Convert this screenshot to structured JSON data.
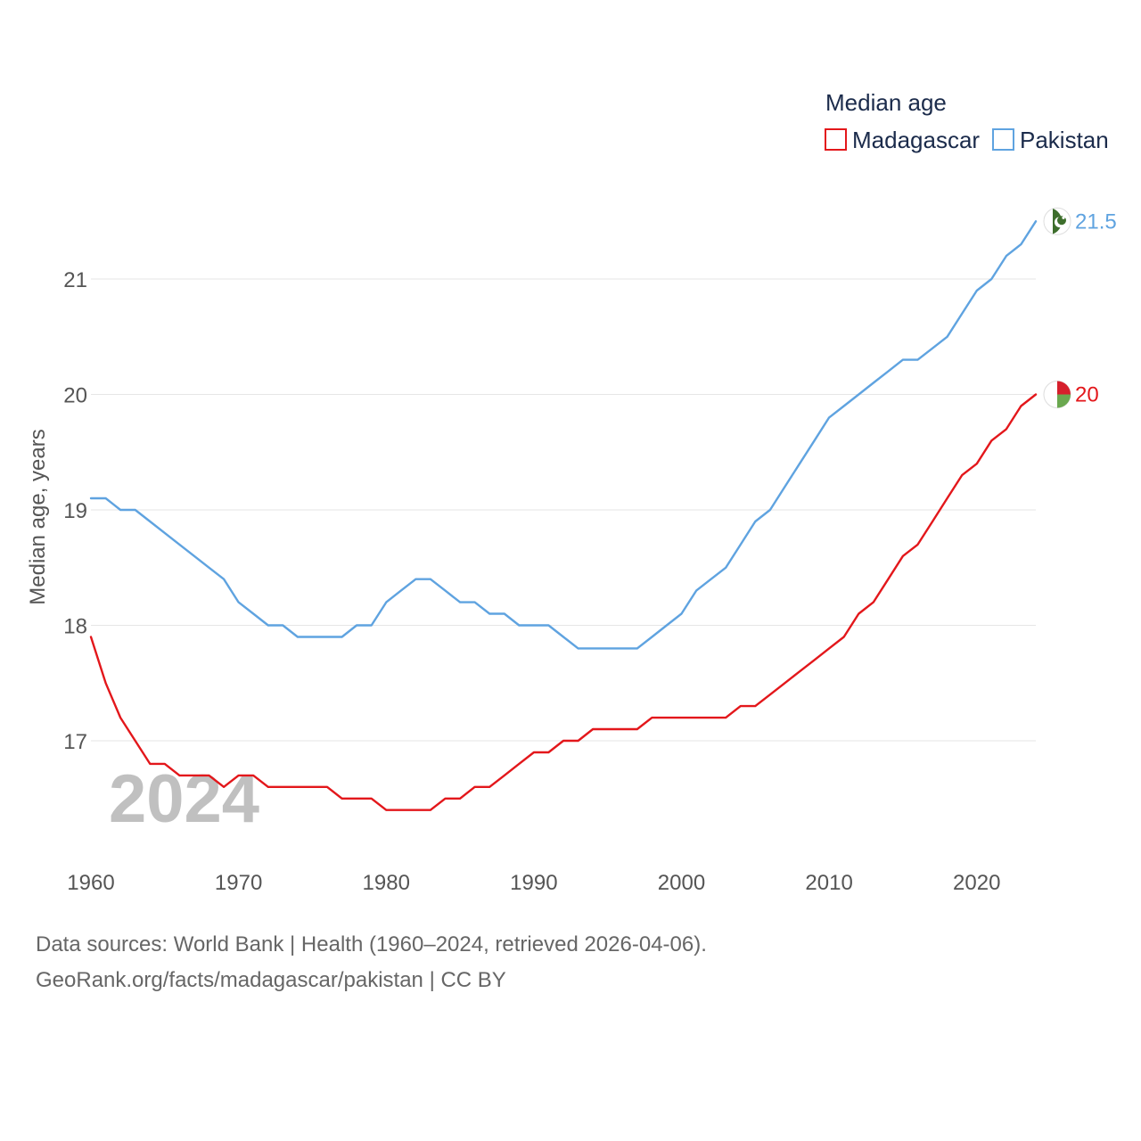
{
  "chart_data": {
    "type": "line",
    "legend_title": "Median age",
    "ylabel": "Median age, years",
    "xlabel": "",
    "xlim": [
      1960,
      2024
    ],
    "ylim": [
      16,
      21.7
    ],
    "x_ticks": [
      1960,
      1970,
      1980,
      1990,
      2000,
      2010,
      2020
    ],
    "y_ticks": [
      17,
      18,
      19,
      20,
      21
    ],
    "grid": "horizontal",
    "legend_position": "top-right",
    "year_label": "2024",
    "x": [
      1960,
      1961,
      1962,
      1963,
      1964,
      1965,
      1966,
      1967,
      1968,
      1969,
      1970,
      1971,
      1972,
      1973,
      1974,
      1975,
      1976,
      1977,
      1978,
      1979,
      1980,
      1981,
      1982,
      1983,
      1984,
      1985,
      1986,
      1987,
      1988,
      1989,
      1990,
      1991,
      1992,
      1993,
      1994,
      1995,
      1996,
      1997,
      1998,
      1999,
      2000,
      2001,
      2002,
      2003,
      2004,
      2005,
      2006,
      2007,
      2008,
      2009,
      2010,
      2011,
      2012,
      2013,
      2014,
      2015,
      2016,
      2017,
      2018,
      2019,
      2020,
      2021,
      2022,
      2023,
      2024
    ],
    "series": [
      {
        "name": "Madagascar",
        "color": "#e3171b",
        "end_label": "20",
        "values": [
          17.9,
          17.5,
          17.2,
          17.0,
          16.8,
          16.8,
          16.7,
          16.7,
          16.7,
          16.6,
          16.7,
          16.7,
          16.6,
          16.6,
          16.6,
          16.6,
          16.6,
          16.5,
          16.5,
          16.5,
          16.4,
          16.4,
          16.4,
          16.4,
          16.5,
          16.5,
          16.6,
          16.6,
          16.7,
          16.8,
          16.9,
          16.9,
          17.0,
          17.0,
          17.1,
          17.1,
          17.1,
          17.1,
          17.2,
          17.2,
          17.2,
          17.2,
          17.2,
          17.2,
          17.3,
          17.3,
          17.4,
          17.5,
          17.6,
          17.7,
          17.8,
          17.9,
          18.1,
          18.2,
          18.4,
          18.6,
          18.7,
          18.9,
          19.1,
          19.3,
          19.4,
          19.6,
          19.7,
          19.9,
          20.0
        ]
      },
      {
        "name": "Pakistan",
        "color": "#5fa3e0",
        "end_label": "21.5",
        "values": [
          19.1,
          19.1,
          19.0,
          19.0,
          18.9,
          18.8,
          18.7,
          18.6,
          18.5,
          18.4,
          18.2,
          18.1,
          18.0,
          18.0,
          17.9,
          17.9,
          17.9,
          17.9,
          18.0,
          18.0,
          18.2,
          18.3,
          18.4,
          18.4,
          18.3,
          18.2,
          18.2,
          18.1,
          18.1,
          18.0,
          18.0,
          18.0,
          17.9,
          17.8,
          17.8,
          17.8,
          17.8,
          17.8,
          17.9,
          18.0,
          18.1,
          18.3,
          18.4,
          18.5,
          18.7,
          18.9,
          19.0,
          19.2,
          19.4,
          19.6,
          19.8,
          19.9,
          20.0,
          20.1,
          20.2,
          20.3,
          20.3,
          20.4,
          20.5,
          20.7,
          20.9,
          21.0,
          21.2,
          21.3,
          21.5
        ]
      }
    ]
  },
  "footer": {
    "sources": "Data sources: World Bank | Health (1960–2024, retrieved 2026-04-06).",
    "credit": "GeoRank.org/facts/madagascar/pakistan | CC BY"
  },
  "flags": {
    "madagascar": {
      "white": "#ffffff",
      "red": "#d61f2c",
      "green": "#6aa84f"
    },
    "pakistan": {
      "white": "#ffffff",
      "green": "#3d6e2c"
    }
  }
}
